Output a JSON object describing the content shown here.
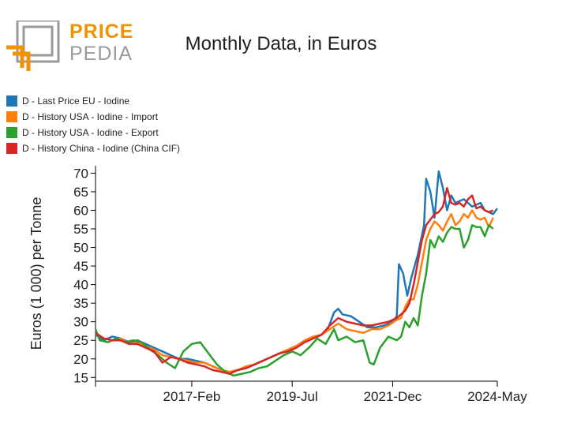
{
  "logo": {
    "word_top": "PRICE",
    "word_bottom": "PEDIA",
    "colors": {
      "orange": "#f39200",
      "gray": "#9a9a9a"
    }
  },
  "chart_data": {
    "type": "line",
    "title": "Monthly Data, in Euros",
    "ylabel": "Euros (1 000) per Tonne",
    "xlabel": "",
    "ylim": [
      14,
      72
    ],
    "xlim": [
      2014.8,
      2024.4
    ],
    "grid": false,
    "legend_position": "top-left",
    "x_ticks": [
      {
        "label": "",
        "x": 2014.8
      },
      {
        "label": "2017-Feb",
        "x": 2017.1
      },
      {
        "label": "2019-Jul",
        "x": 2019.5
      },
      {
        "label": "2021-Dec",
        "x": 2021.9
      },
      {
        "label": "2024-May",
        "x": 2024.4
      }
    ],
    "y_ticks": [
      15,
      20,
      25,
      30,
      35,
      40,
      45,
      50,
      55,
      60,
      65,
      70
    ],
    "series": [
      {
        "name": "D - Last Price EU - Iodine",
        "color": "#1f77b4",
        "points": [
          [
            2014.8,
            26.5
          ],
          [
            2015.0,
            25.0
          ],
          [
            2015.2,
            26.0
          ],
          [
            2015.4,
            25.5
          ],
          [
            2015.6,
            24.5
          ],
          [
            2015.8,
            25.0
          ],
          [
            2016.0,
            24.0
          ],
          [
            2016.2,
            23.0
          ],
          [
            2016.4,
            22.0
          ],
          [
            2016.6,
            21.0
          ],
          [
            2016.8,
            20.0
          ],
          [
            2017.0,
            20.0
          ],
          [
            2017.2,
            19.5
          ],
          [
            2017.4,
            19.0
          ],
          [
            2017.6,
            18.0
          ],
          [
            2017.8,
            17.0
          ],
          [
            2018.0,
            16.5
          ],
          [
            2018.2,
            17.0
          ],
          [
            2018.4,
            17.5
          ],
          [
            2018.6,
            18.5
          ],
          [
            2018.8,
            19.5
          ],
          [
            2019.0,
            20.5
          ],
          [
            2019.2,
            21.5
          ],
          [
            2019.4,
            22.5
          ],
          [
            2019.6,
            23.5
          ],
          [
            2019.8,
            24.5
          ],
          [
            2020.0,
            25.5
          ],
          [
            2020.2,
            26.5
          ],
          [
            2020.35,
            28.0
          ],
          [
            2020.5,
            32.5
          ],
          [
            2020.6,
            33.5
          ],
          [
            2020.7,
            32.0
          ],
          [
            2020.9,
            31.5
          ],
          [
            2021.1,
            30.0
          ],
          [
            2021.3,
            28.5
          ],
          [
            2021.5,
            28.5
          ],
          [
            2021.7,
            29.0
          ],
          [
            2021.9,
            30.0
          ],
          [
            2022.0,
            31.5
          ],
          [
            2022.05,
            45.5
          ],
          [
            2022.15,
            43.0
          ],
          [
            2022.25,
            37.0
          ],
          [
            2022.35,
            42.0
          ],
          [
            2022.5,
            48.0
          ],
          [
            2022.65,
            56.0
          ],
          [
            2022.7,
            68.5
          ],
          [
            2022.8,
            65.0
          ],
          [
            2022.9,
            58.0
          ],
          [
            2023.0,
            70.5
          ],
          [
            2023.1,
            66.0
          ],
          [
            2023.2,
            60.0
          ],
          [
            2023.3,
            64.0
          ],
          [
            2023.4,
            62.0
          ],
          [
            2023.6,
            63.0
          ],
          [
            2023.8,
            61.0
          ],
          [
            2024.0,
            62.0
          ],
          [
            2024.1,
            60.0
          ],
          [
            2024.2,
            59.5
          ],
          [
            2024.3,
            59.0
          ],
          [
            2024.4,
            60.5
          ]
        ]
      },
      {
        "name": "D - History USA - Iodine - Import",
        "color": "#ff7f0e",
        "points": [
          [
            2014.8,
            27.0
          ],
          [
            2015.0,
            25.5
          ],
          [
            2015.2,
            25.0
          ],
          [
            2015.4,
            25.5
          ],
          [
            2015.6,
            24.0
          ],
          [
            2015.8,
            24.5
          ],
          [
            2016.0,
            23.5
          ],
          [
            2016.2,
            22.5
          ],
          [
            2016.4,
            21.0
          ],
          [
            2016.6,
            20.5
          ],
          [
            2016.8,
            20.0
          ],
          [
            2017.0,
            19.5
          ],
          [
            2017.2,
            19.0
          ],
          [
            2017.4,
            19.0
          ],
          [
            2017.6,
            18.0
          ],
          [
            2017.8,
            17.0
          ],
          [
            2018.0,
            16.5
          ],
          [
            2018.2,
            17.0
          ],
          [
            2018.4,
            18.0
          ],
          [
            2018.6,
            18.5
          ],
          [
            2018.8,
            19.5
          ],
          [
            2019.0,
            20.5
          ],
          [
            2019.2,
            21.5
          ],
          [
            2019.4,
            22.5
          ],
          [
            2019.6,
            23.5
          ],
          [
            2019.8,
            25.0
          ],
          [
            2020.0,
            26.0
          ],
          [
            2020.2,
            26.5
          ],
          [
            2020.4,
            28.0
          ],
          [
            2020.6,
            29.5
          ],
          [
            2020.8,
            28.0
          ],
          [
            2021.0,
            27.5
          ],
          [
            2021.2,
            27.0
          ],
          [
            2021.4,
            28.0
          ],
          [
            2021.6,
            28.0
          ],
          [
            2021.8,
            29.0
          ],
          [
            2022.0,
            30.5
          ],
          [
            2022.1,
            31.0
          ],
          [
            2022.2,
            34.0
          ],
          [
            2022.3,
            36.0
          ],
          [
            2022.4,
            36.0
          ],
          [
            2022.5,
            40.0
          ],
          [
            2022.6,
            46.0
          ],
          [
            2022.7,
            52.0
          ],
          [
            2022.8,
            55.0
          ],
          [
            2022.9,
            57.0
          ],
          [
            2023.0,
            56.0
          ],
          [
            2023.1,
            54.5
          ],
          [
            2023.2,
            57.0
          ],
          [
            2023.3,
            59.0
          ],
          [
            2023.4,
            56.0
          ],
          [
            2023.5,
            57.0
          ],
          [
            2023.6,
            59.0
          ],
          [
            2023.7,
            58.0
          ],
          [
            2023.8,
            60.0
          ],
          [
            2023.9,
            58.0
          ],
          [
            2024.0,
            57.5
          ],
          [
            2024.1,
            58.0
          ],
          [
            2024.2,
            55.5
          ],
          [
            2024.3,
            58.0
          ]
        ]
      },
      {
        "name": "D - History USA - Iodine - Export",
        "color": "#2ca02c",
        "points": [
          [
            2014.8,
            28.0
          ],
          [
            2014.9,
            25.0
          ],
          [
            2015.1,
            24.5
          ],
          [
            2015.3,
            25.5
          ],
          [
            2015.5,
            24.5
          ],
          [
            2015.7,
            25.0
          ],
          [
            2015.9,
            24.5
          ],
          [
            2016.1,
            22.5
          ],
          [
            2016.3,
            21.0
          ],
          [
            2016.5,
            19.0
          ],
          [
            2016.7,
            17.5
          ],
          [
            2016.9,
            22.0
          ],
          [
            2017.1,
            24.0
          ],
          [
            2017.3,
            24.5
          ],
          [
            2017.5,
            21.5
          ],
          [
            2017.7,
            18.5
          ],
          [
            2017.9,
            16.5
          ],
          [
            2018.1,
            15.5
          ],
          [
            2018.3,
            16.0
          ],
          [
            2018.5,
            16.5
          ],
          [
            2018.7,
            17.5
          ],
          [
            2018.9,
            18.0
          ],
          [
            2019.1,
            19.5
          ],
          [
            2019.3,
            21.0
          ],
          [
            2019.5,
            22.0
          ],
          [
            2019.7,
            21.0
          ],
          [
            2019.9,
            23.0
          ],
          [
            2020.1,
            25.5
          ],
          [
            2020.3,
            24.0
          ],
          [
            2020.5,
            28.0
          ],
          [
            2020.6,
            25.0
          ],
          [
            2020.8,
            26.0
          ],
          [
            2021.0,
            24.5
          ],
          [
            2021.2,
            25.0
          ],
          [
            2021.35,
            19.0
          ],
          [
            2021.45,
            18.5
          ],
          [
            2021.6,
            23.0
          ],
          [
            2021.8,
            26.0
          ],
          [
            2022.0,
            25.0
          ],
          [
            2022.1,
            26.0
          ],
          [
            2022.2,
            30.0
          ],
          [
            2022.3,
            28.5
          ],
          [
            2022.4,
            31.0
          ],
          [
            2022.5,
            29.0
          ],
          [
            2022.6,
            37.0
          ],
          [
            2022.7,
            43.0
          ],
          [
            2022.8,
            52.0
          ],
          [
            2022.9,
            50.0
          ],
          [
            2023.0,
            53.0
          ],
          [
            2023.1,
            51.5
          ],
          [
            2023.2,
            54.0
          ],
          [
            2023.3,
            55.5
          ],
          [
            2023.4,
            55.0
          ],
          [
            2023.5,
            55.0
          ],
          [
            2023.6,
            50.0
          ],
          [
            2023.7,
            52.0
          ],
          [
            2023.8,
            56.0
          ],
          [
            2023.9,
            55.5
          ],
          [
            2024.0,
            55.5
          ],
          [
            2024.1,
            53.0
          ],
          [
            2024.2,
            56.0
          ],
          [
            2024.3,
            55.0
          ]
        ]
      },
      {
        "name": "D - History China - Iodine (China CIF)",
        "color": "#d62728",
        "points": [
          [
            2014.8,
            27.0
          ],
          [
            2015.0,
            25.5
          ],
          [
            2015.2,
            25.0
          ],
          [
            2015.4,
            25.0
          ],
          [
            2015.6,
            24.0
          ],
          [
            2015.8,
            24.0
          ],
          [
            2016.0,
            23.0
          ],
          [
            2016.2,
            22.0
          ],
          [
            2016.4,
            19.0
          ],
          [
            2016.6,
            20.5
          ],
          [
            2016.8,
            20.0
          ],
          [
            2017.0,
            19.0
          ],
          [
            2017.2,
            18.5
          ],
          [
            2017.4,
            18.0
          ],
          [
            2017.6,
            17.0
          ],
          [
            2017.8,
            16.5
          ],
          [
            2018.0,
            16.0
          ],
          [
            2018.2,
            17.0
          ],
          [
            2018.4,
            17.5
          ],
          [
            2018.6,
            18.5
          ],
          [
            2018.8,
            19.5
          ],
          [
            2019.0,
            20.5
          ],
          [
            2019.2,
            21.5
          ],
          [
            2019.4,
            22.0
          ],
          [
            2019.6,
            23.0
          ],
          [
            2019.8,
            24.5
          ],
          [
            2020.0,
            25.5
          ],
          [
            2020.2,
            26.5
          ],
          [
            2020.4,
            29.0
          ],
          [
            2020.6,
            31.0
          ],
          [
            2020.8,
            30.0
          ],
          [
            2021.0,
            29.5
          ],
          [
            2021.2,
            29.0
          ],
          [
            2021.4,
            29.0
          ],
          [
            2021.6,
            29.5
          ],
          [
            2021.8,
            30.0
          ],
          [
            2022.0,
            31.0
          ],
          [
            2022.1,
            32.0
          ],
          [
            2022.2,
            33.0
          ],
          [
            2022.3,
            35.0
          ],
          [
            2022.4,
            40.0
          ],
          [
            2022.5,
            46.0
          ],
          [
            2022.6,
            52.0
          ],
          [
            2022.7,
            56.0
          ],
          [
            2022.8,
            57.5
          ],
          [
            2022.9,
            59.0
          ],
          [
            2023.0,
            59.5
          ],
          [
            2023.1,
            61.0
          ],
          [
            2023.2,
            66.0
          ],
          [
            2023.3,
            62.0
          ],
          [
            2023.4,
            61.5
          ],
          [
            2023.5,
            62.0
          ],
          [
            2023.6,
            61.0
          ],
          [
            2023.7,
            63.0
          ],
          [
            2023.8,
            64.0
          ],
          [
            2023.9,
            60.5
          ],
          [
            2024.0,
            61.0
          ],
          [
            2024.1,
            60.0
          ],
          [
            2024.2,
            59.5
          ],
          [
            2024.3,
            60.0
          ]
        ]
      }
    ]
  }
}
